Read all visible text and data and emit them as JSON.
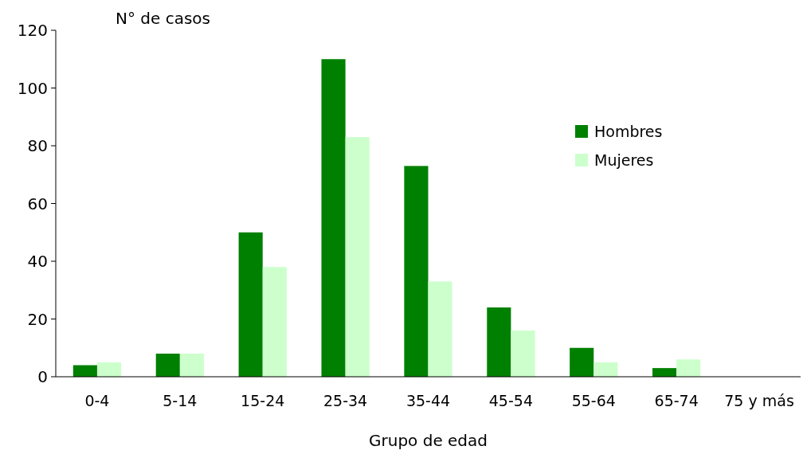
{
  "chart_data": {
    "type": "bar",
    "ylabel": "N° de casos",
    "xlabel": "Grupo de edad",
    "categories": [
      "0-4",
      "5-14",
      "15-24",
      "25-34",
      "35-44",
      "45-54",
      "55-64",
      "65-74",
      "75 y más"
    ],
    "series": [
      {
        "name": "Hombres",
        "color": "#008000",
        "values": [
          4,
          8,
          50,
          110,
          73,
          24,
          10,
          3,
          0
        ]
      },
      {
        "name": "Mujeres",
        "color": "#ccffcc",
        "values": [
          5,
          8,
          38,
          83,
          33,
          16,
          5,
          6,
          0
        ]
      }
    ],
    "ylim": [
      0,
      120
    ],
    "yticks": [
      0,
      20,
      40,
      60,
      80,
      100,
      120
    ],
    "grid": false,
    "legend": "top right"
  }
}
